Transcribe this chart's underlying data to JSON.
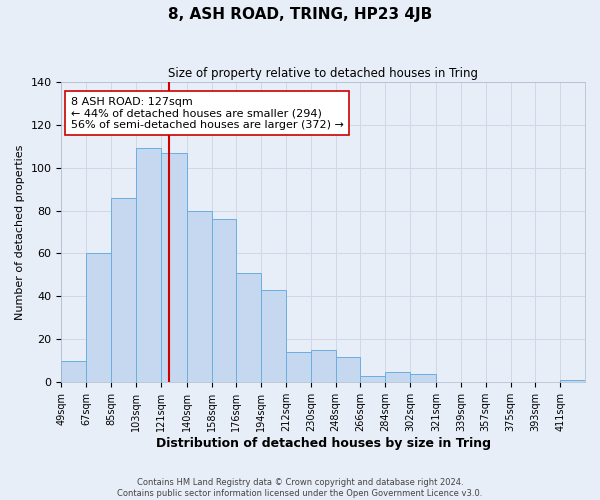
{
  "title": "8, ASH ROAD, TRING, HP23 4JB",
  "subtitle": "Size of property relative to detached houses in Tring",
  "xlabel": "Distribution of detached houses by size in Tring",
  "ylabel": "Number of detached properties",
  "footnote1": "Contains HM Land Registry data © Crown copyright and database right 2024.",
  "footnote2": "Contains public sector information licensed under the Open Government Licence v3.0.",
  "bar_labels": [
    "49sqm",
    "67sqm",
    "85sqm",
    "103sqm",
    "121sqm",
    "140sqm",
    "158sqm",
    "176sqm",
    "194sqm",
    "212sqm",
    "230sqm",
    "248sqm",
    "266sqm",
    "284sqm",
    "302sqm",
    "321sqm",
    "339sqm",
    "357sqm",
    "375sqm",
    "393sqm",
    "411sqm"
  ],
  "bar_values": [
    10,
    60,
    86,
    109,
    107,
    80,
    76,
    51,
    43,
    14,
    15,
    12,
    3,
    5,
    4,
    0,
    0,
    0,
    0,
    0,
    1
  ],
  "bar_color": "#c5d8f0",
  "bar_edgecolor": "#6aaee0",
  "vline_x": 127,
  "vline_color": "#cc0000",
  "vline_label": "8 ASH ROAD: 127sqm",
  "annotation_line1": "← 44% of detached houses are smaller (294)",
  "annotation_line2": "56% of semi-detached houses are larger (372) →",
  "annotation_box_edgecolor": "#cc0000",
  "annotation_box_facecolor": "#ffffff",
  "annotation_fontsize": 8,
  "ylim": [
    0,
    140
  ],
  "yticks": [
    0,
    20,
    40,
    60,
    80,
    100,
    120,
    140
  ],
  "grid_color": "#d0d8e8",
  "background_color": "#e8eef8",
  "axes_background": "#e8eef8",
  "bin_starts": [
    49,
    67,
    85,
    103,
    121,
    140,
    158,
    176,
    194,
    212,
    230,
    248,
    266,
    284,
    302,
    321,
    339,
    357,
    375,
    393,
    411
  ]
}
